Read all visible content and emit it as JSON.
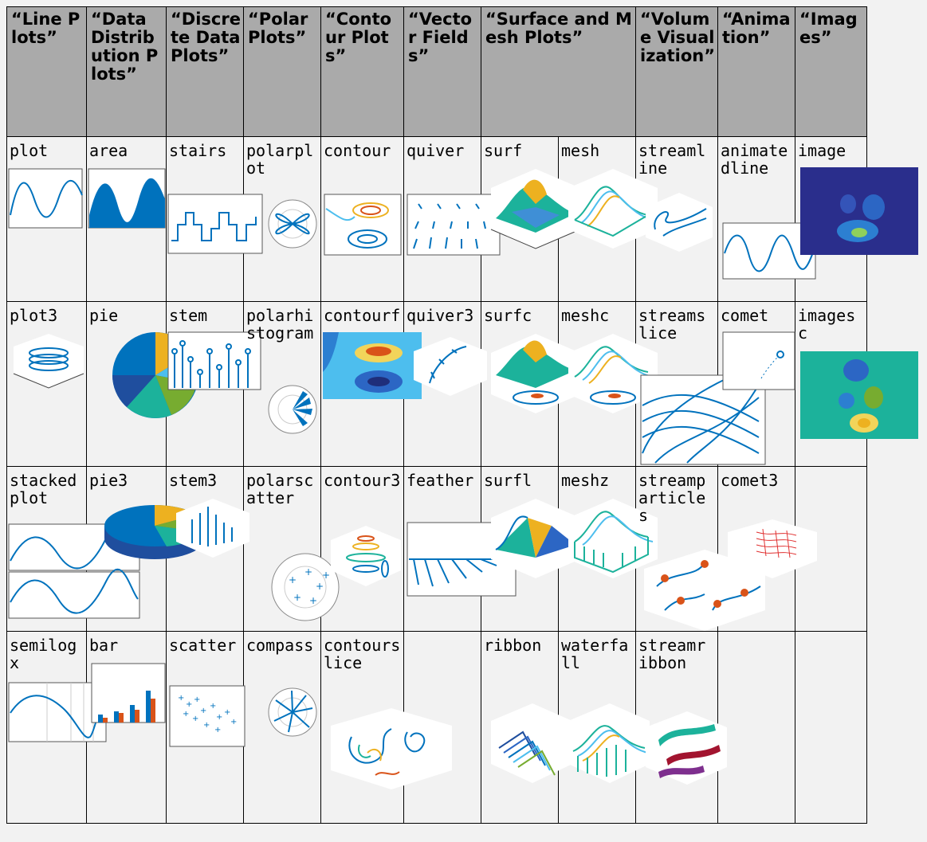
{
  "categories": [
    "“Line Plots”",
    "“Data Distribution Plots”",
    "“Discrete Data Plots”",
    "“Polar Plots”",
    "“Contour Plots”",
    "“Vector Fields”",
    "“Surface and Mesh Plots”",
    "“Volume Visualization”",
    "“Animation”",
    "“Images”"
  ],
  "rows": [
    [
      "plot",
      "area",
      "stairs",
      "polarplot",
      "contour",
      "quiver",
      "surf",
      "mesh",
      "streamline",
      "animatedline",
      "image"
    ],
    [
      "plot3",
      "pie",
      "stem",
      "polarhistogram",
      "contourf",
      "quiver3",
      "surfc",
      "meshc",
      "streamslice",
      "comet",
      "imagesc"
    ],
    [
      "stackedplot",
      "pie3",
      "stem3",
      "polarscatter",
      "contour3",
      "feather",
      "surfl",
      "meshz",
      "streamparticles",
      "comet3",
      ""
    ],
    [
      "semilogx",
      "bar",
      "scatter",
      "compass",
      "contourslice",
      "",
      "ribbon",
      "waterfall",
      "streamribbon",
      "",
      ""
    ]
  ],
  "colors": {
    "header_bg": "#aaaaaa",
    "cell_bg": "#f2f2f2",
    "line_blue": "#0072bd",
    "orange": "#d95319",
    "yellow": "#edb120"
  }
}
